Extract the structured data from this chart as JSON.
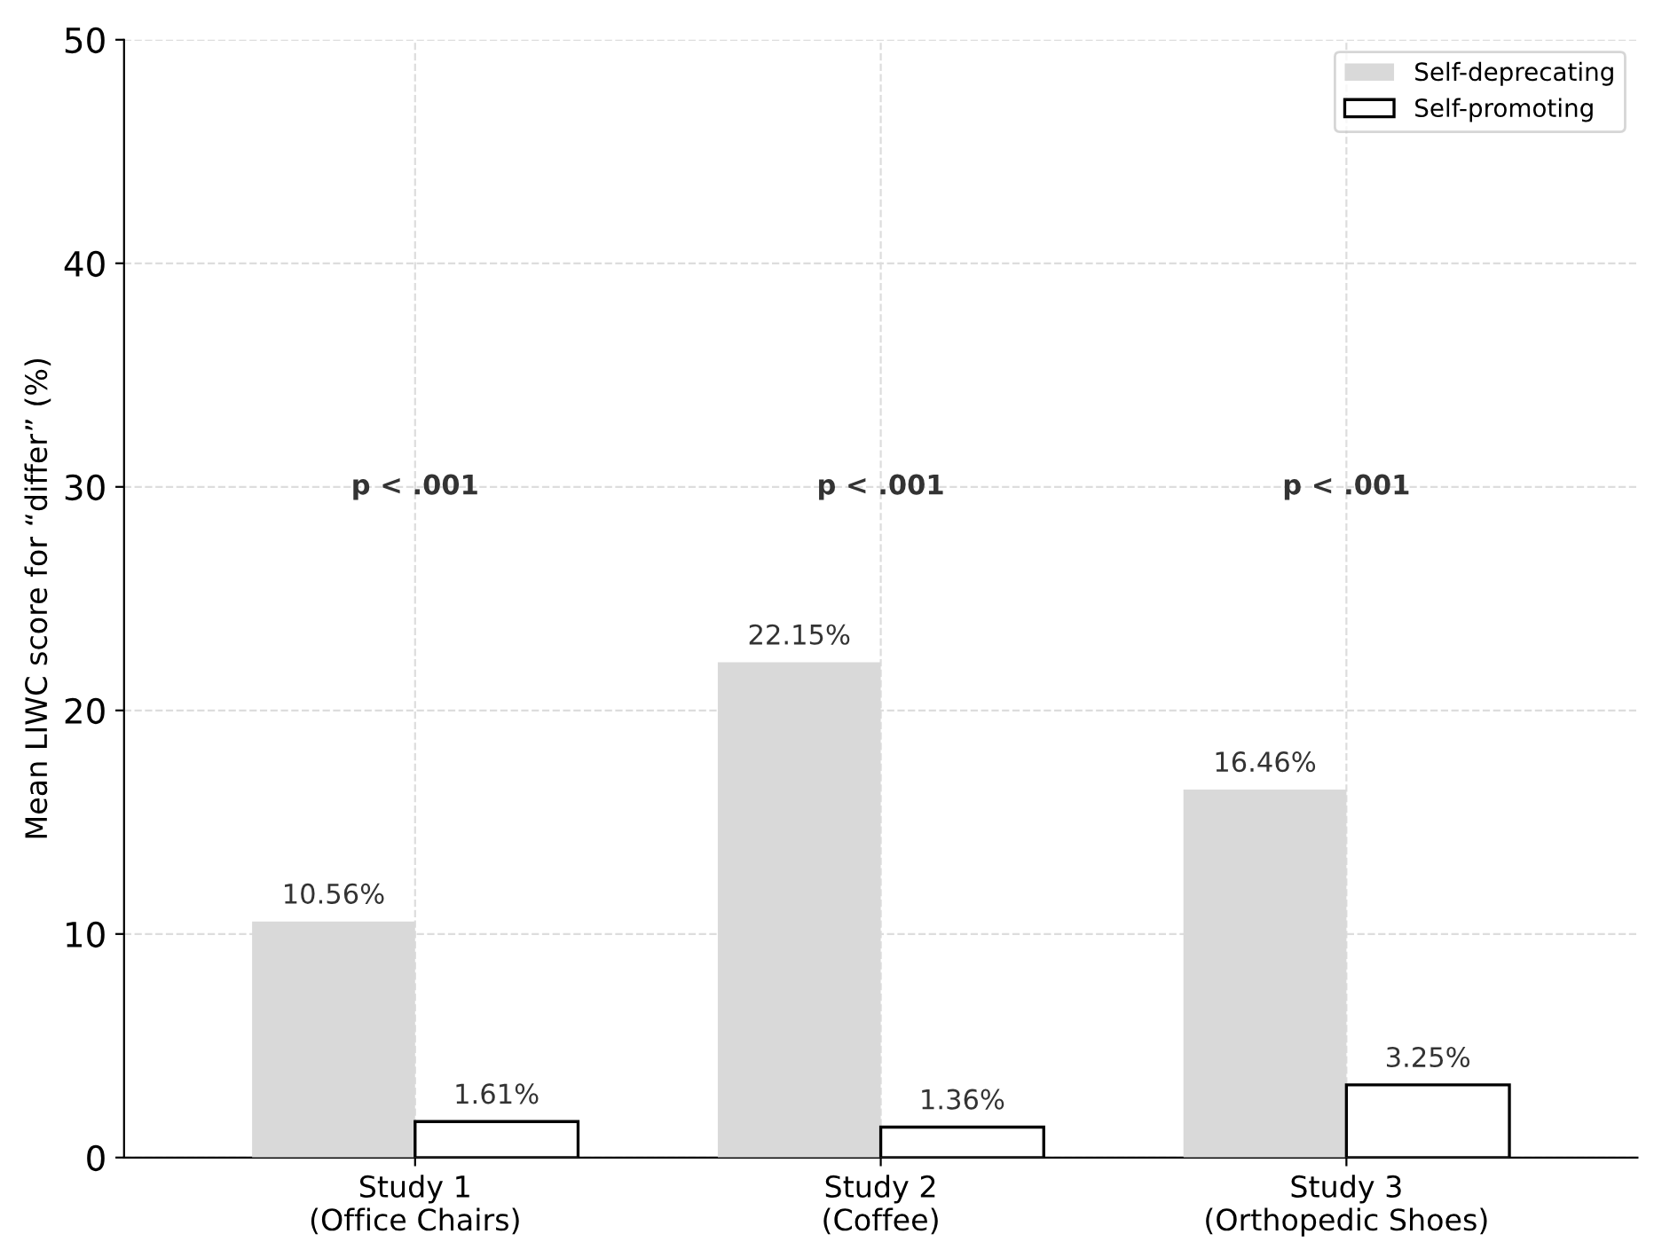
{
  "chart_data": {
    "type": "bar",
    "ylabel": "Mean LIWC score for “differ” (%)",
    "categories": [
      "Study 1\n(Office Chairs)",
      "Study 2\n(Coffee)",
      "Study 3\n(Orthopedic Shoes)"
    ],
    "series": [
      {
        "name": "Self-deprecating",
        "color": "#d9d9d9",
        "values": [
          10.56,
          22.15,
          16.46
        ],
        "value_labels": [
          "10.56%",
          "22.15%",
          "16.46%"
        ]
      },
      {
        "name": "Self-promoting",
        "color": "#ffffff",
        "values": [
          1.61,
          1.36,
          3.25
        ],
        "value_labels": [
          "1.61%",
          "1.36%",
          "3.25%"
        ]
      }
    ],
    "annotations": [
      "p < .001",
      "p < .001",
      "p < .001"
    ],
    "ylim": [
      0,
      50
    ],
    "yticks": [
      0,
      10,
      20,
      30,
      40,
      50
    ],
    "grid": true,
    "legend": "top right"
  }
}
